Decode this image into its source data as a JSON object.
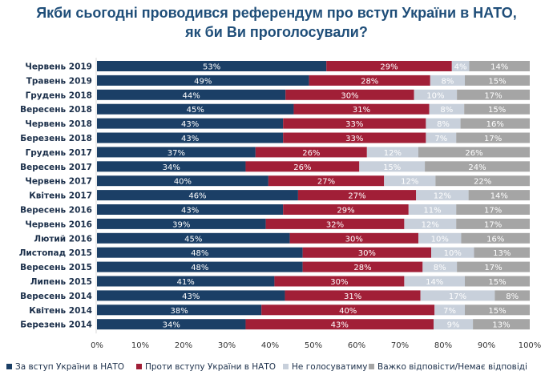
{
  "chart_data": {
    "type": "bar",
    "orientation": "horizontal",
    "stacked": true,
    "title": [
      "Якби сьогодні проводився референдум про вступ України в НАТО,",
      "як би Ви проголосували?"
    ],
    "categories": [
      "Червень 2019",
      "Травень 2019",
      "Грудень 2018",
      "Вересень 2018",
      "Червень 2018",
      "Березень 2018",
      "Грудень 2017",
      "Вересень 2017",
      "Червень 2017",
      "Квітень 2017",
      "Вересень 2016",
      "Червень 2016",
      "Лютий 2016",
      "Листопад 2015",
      "Вересень 2015",
      "Липень 2015",
      "Вересень 2014",
      "Квітень 2014",
      "Березень 2014"
    ],
    "series": [
      {
        "name": "За вступ України в НАТО",
        "color": "#1b3f66",
        "values": [
          53,
          49,
          44,
          45,
          43,
          43,
          37,
          34,
          40,
          46,
          43,
          39,
          45,
          48,
          48,
          41,
          43,
          38,
          34
        ]
      },
      {
        "name": "Проти вступу України в НАТО",
        "color": "#a11f37",
        "values": [
          29,
          28,
          30,
          31,
          33,
          33,
          26,
          26,
          27,
          27,
          29,
          32,
          30,
          30,
          28,
          30,
          31,
          40,
          43
        ]
      },
      {
        "name": "Не голосуватиму",
        "color": "#c8d0db",
        "values": [
          4,
          8,
          10,
          8,
          8,
          7,
          12,
          15,
          12,
          12,
          11,
          12,
          10,
          10,
          8,
          14,
          17,
          7,
          9
        ]
      },
      {
        "name": "Важко відповісти/Немає відповіді",
        "color": "#a5a5a5",
        "values": [
          14,
          15,
          17,
          15,
          16,
          17,
          26,
          24,
          22,
          14,
          17,
          17,
          16,
          13,
          17,
          15,
          8,
          15,
          13
        ]
      }
    ],
    "xlim": [
      0,
      100
    ],
    "xticks": [
      "0%",
      "10%",
      "20%",
      "30%",
      "40%",
      "50%",
      "60%",
      "70%",
      "80%",
      "90%",
      "100%"
    ],
    "value_suffix": "%",
    "legend": "bottom",
    "grid": false
  }
}
